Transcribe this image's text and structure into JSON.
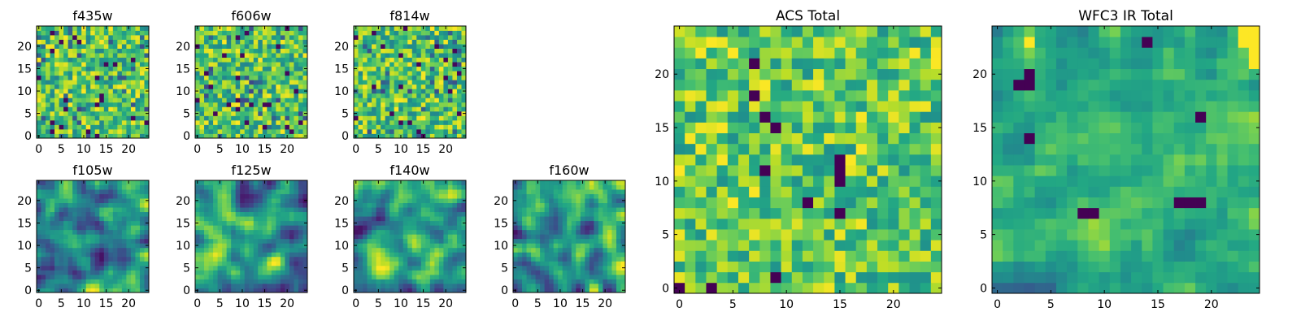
{
  "chart_data": [
    {
      "type": "heatmap",
      "title": "f435w",
      "xticks": [
        "0",
        "5",
        "10",
        "15",
        "20"
      ],
      "yticks": [
        "0",
        "5",
        "10",
        "15",
        "20"
      ],
      "xlim": [
        -0.5,
        24.5
      ],
      "ylim": [
        -0.5,
        24.5
      ],
      "grid_size": [
        25,
        25
      ],
      "colormap": "viridis",
      "texture": "pixel-noise",
      "seed": 11
    },
    {
      "type": "heatmap",
      "title": "f606w",
      "xticks": [
        "0",
        "5",
        "10",
        "15",
        "20"
      ],
      "yticks": [
        "0",
        "5",
        "10",
        "15",
        "20"
      ],
      "xlim": [
        -0.5,
        24.5
      ],
      "ylim": [
        -0.5,
        24.5
      ],
      "grid_size": [
        25,
        25
      ],
      "colormap": "viridis",
      "texture": "pixel-noise",
      "seed": 23
    },
    {
      "type": "heatmap",
      "title": "f814w",
      "xticks": [
        "0",
        "5",
        "10",
        "15",
        "20"
      ],
      "yticks": [
        "0",
        "5",
        "10",
        "15",
        "20"
      ],
      "xlim": [
        -0.5,
        24.5
      ],
      "ylim": [
        -0.5,
        24.5
      ],
      "grid_size": [
        25,
        25
      ],
      "colormap": "viridis",
      "texture": "pixel-noise",
      "seed": 37
    },
    {
      "type": "heatmap",
      "title": "f105w",
      "xticks": [
        "0",
        "5",
        "10",
        "15",
        "20"
      ],
      "yticks": [
        "0",
        "5",
        "10",
        "15",
        "20"
      ],
      "xlim": [
        -0.5,
        24.5
      ],
      "ylim": [
        -0.5,
        24.5
      ],
      "grid_size": [
        25,
        25
      ],
      "colormap": "viridis",
      "texture": "smoothed-noise",
      "seed": 41
    },
    {
      "type": "heatmap",
      "title": "f125w",
      "xticks": [
        "0",
        "5",
        "10",
        "15",
        "20"
      ],
      "yticks": [
        "0",
        "5",
        "10",
        "15",
        "20"
      ],
      "xlim": [
        -0.5,
        24.5
      ],
      "ylim": [
        -0.5,
        24.5
      ],
      "grid_size": [
        25,
        25
      ],
      "colormap": "viridis",
      "texture": "smoothed-noise",
      "seed": 53
    },
    {
      "type": "heatmap",
      "title": "f140w",
      "xticks": [
        "0",
        "5",
        "10",
        "15",
        "20"
      ],
      "yticks": [
        "0",
        "5",
        "10",
        "15",
        "20"
      ],
      "xlim": [
        -0.5,
        24.5
      ],
      "ylim": [
        -0.5,
        24.5
      ],
      "grid_size": [
        25,
        25
      ],
      "colormap": "viridis",
      "texture": "smoothed-noise",
      "seed": 67
    },
    {
      "type": "heatmap",
      "title": "f160w",
      "xticks": [
        "0",
        "5",
        "10",
        "15",
        "20"
      ],
      "yticks": [
        "0",
        "5",
        "10",
        "15",
        "20"
      ],
      "xlim": [
        -0.5,
        24.5
      ],
      "ylim": [
        -0.5,
        24.5
      ],
      "grid_size": [
        25,
        25
      ],
      "colormap": "viridis",
      "texture": "smoothed-noise",
      "seed": 79
    },
    {
      "type": "heatmap",
      "title": "ACS Total",
      "xticks": [
        "0",
        "5",
        "10",
        "15",
        "20"
      ],
      "yticks": [
        "0",
        "5",
        "10",
        "15",
        "20"
      ],
      "xlim": [
        -0.5,
        24.5
      ],
      "ylim": [
        -0.5,
        24.5
      ],
      "grid_size": [
        25,
        25
      ],
      "colormap": "viridis",
      "texture": "pixel-noise-bright",
      "seed": 83,
      "dark_pixels": [
        [
          7,
          21
        ],
        [
          7,
          18
        ],
        [
          8,
          16
        ],
        [
          9,
          15
        ],
        [
          8,
          11
        ],
        [
          15,
          12
        ],
        [
          15,
          11
        ],
        [
          15,
          10
        ],
        [
          12,
          8
        ],
        [
          15,
          7
        ],
        [
          9,
          1
        ],
        [
          3,
          0
        ],
        [
          0,
          0
        ]
      ]
    },
    {
      "type": "heatmap",
      "title": "WFC3 IR Total",
      "xticks": [
        "0",
        "5",
        "10",
        "15",
        "20"
      ],
      "yticks": [
        "0",
        "5",
        "10",
        "15",
        "20"
      ],
      "xlim": [
        -0.5,
        24.5
      ],
      "ylim": [
        -0.5,
        24.5
      ],
      "grid_size": [
        25,
        25
      ],
      "colormap": "viridis",
      "texture": "smoothed-noise-green",
      "seed": 97,
      "dark_pixels": [
        [
          3,
          20
        ],
        [
          3,
          19
        ],
        [
          2,
          19
        ],
        [
          3,
          14
        ],
        [
          8,
          7
        ],
        [
          9,
          7
        ],
        [
          17,
          8
        ],
        [
          18,
          8
        ],
        [
          19,
          8
        ],
        [
          19,
          16
        ],
        [
          14,
          23
        ]
      ],
      "bright_pixels": [
        [
          23,
          24
        ],
        [
          24,
          24
        ],
        [
          23,
          23
        ],
        [
          24,
          23
        ],
        [
          24,
          22
        ],
        [
          24,
          21
        ],
        [
          3,
          23
        ]
      ]
    }
  ]
}
